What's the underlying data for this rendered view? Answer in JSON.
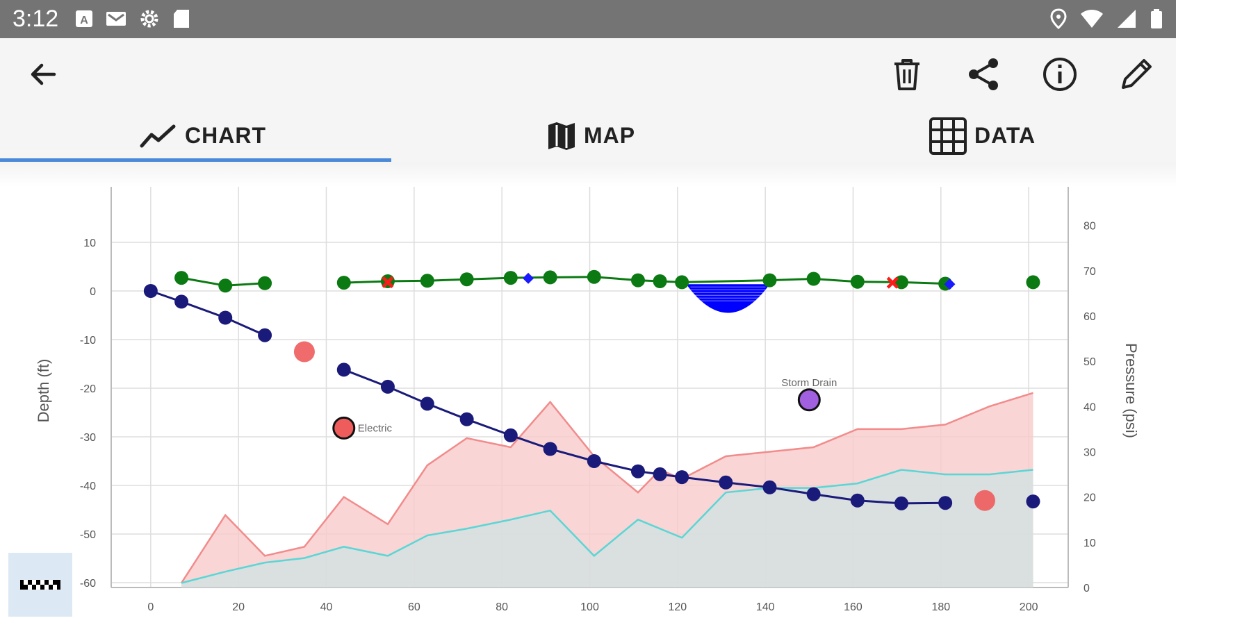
{
  "status_bar": {
    "time": "3:12"
  },
  "app_bar": {
    "back_icon": "arrow-back-icon",
    "actions": [
      "delete-icon",
      "share-icon",
      "info-icon",
      "edit-icon"
    ]
  },
  "tabs": [
    {
      "label": "CHART",
      "icon": "chart-line-icon",
      "selected": true
    },
    {
      "label": "MAP",
      "icon": "map-icon",
      "selected": false
    },
    {
      "label": "DATA",
      "icon": "grid-icon",
      "selected": false
    }
  ],
  "colors": {
    "accent": "#4a88d8",
    "depth_line": "#1a1a7a",
    "ground_line": "#0b7a12",
    "pressure_a": "#f28b8b",
    "pressure_a_fill": "#f8caca",
    "pressure_b": "#5ad6d6",
    "pressure_b_fill": "#d2e1e1",
    "utility_marker": "#ee5c5c",
    "storm_drain": "#a060e0",
    "water_fill": "#0000ff"
  },
  "chart_data": {
    "type": "line",
    "xlabel": "",
    "ylabel": "Depth (ft)",
    "y2label": "Pressure (psi)",
    "xlim": [
      -9,
      209
    ],
    "ylim": [
      -61,
      20
    ],
    "y2lim": [
      0,
      87
    ],
    "x_ticks": [
      0,
      20,
      40,
      60,
      80,
      100,
      120,
      140,
      160,
      180,
      200
    ],
    "y_ticks": [
      10,
      0,
      -10,
      -20,
      -30,
      -40,
      -50,
      -60
    ],
    "y2_ticks": [
      80,
      70,
      60,
      50,
      40,
      30,
      20,
      10,
      0
    ],
    "grid": true,
    "series": [
      {
        "kind": "depth",
        "points": [
          [
            0,
            0
          ],
          [
            7,
            -2.2
          ],
          [
            17,
            -5.5
          ],
          [
            26,
            -9.1
          ]
        ]
      },
      {
        "kind": "depth",
        "points": [
          [
            44,
            -16.2
          ],
          [
            54,
            -19.7
          ],
          [
            63,
            -23.2
          ],
          [
            72,
            -26.4
          ],
          [
            82,
            -29.7
          ],
          [
            91,
            -32.5
          ],
          [
            101,
            -35
          ],
          [
            111,
            -37.1
          ],
          [
            116,
            -37.7
          ],
          [
            121,
            -38.3
          ],
          [
            131,
            -39.4
          ],
          [
            141,
            -40.4
          ],
          [
            151,
            -41.8
          ],
          [
            161,
            -43.1
          ],
          [
            171,
            -43.7
          ],
          [
            181,
            -43.6
          ]
        ]
      },
      {
        "kind": "depth-single",
        "points": [
          [
            201,
            -43.3
          ]
        ]
      },
      {
        "kind": "ground",
        "points": [
          [
            7,
            2.7
          ],
          [
            17,
            1.1
          ],
          [
            26,
            1.6
          ]
        ]
      },
      {
        "kind": "ground",
        "points": [
          [
            44,
            1.7
          ],
          [
            54,
            2
          ],
          [
            63,
            2.1
          ],
          [
            72,
            2.4
          ],
          [
            82,
            2.7
          ],
          [
            91,
            2.8
          ],
          [
            101,
            2.9
          ],
          [
            111,
            2.2
          ],
          [
            116,
            2
          ],
          [
            121,
            1.8
          ],
          [
            141,
            2.2
          ],
          [
            151,
            2.5
          ],
          [
            161,
            1.9
          ],
          [
            171,
            1.8
          ],
          [
            181,
            1.5
          ]
        ]
      },
      {
        "kind": "ground-single",
        "points": [
          [
            201,
            1.8
          ]
        ]
      },
      {
        "kind": "pressure-a",
        "points": [
          [
            7,
            1
          ],
          [
            17,
            16
          ],
          [
            26,
            7
          ],
          [
            35,
            9
          ],
          [
            44,
            20
          ],
          [
            54,
            14
          ],
          [
            63,
            27
          ],
          [
            72,
            33
          ],
          [
            82,
            31
          ],
          [
            91,
            41
          ],
          [
            101,
            29
          ],
          [
            111,
            21
          ],
          [
            116,
            26
          ],
          [
            121,
            24
          ],
          [
            131,
            29
          ],
          [
            141,
            30
          ],
          [
            151,
            31
          ],
          [
            161,
            35
          ],
          [
            171,
            35
          ],
          [
            181,
            36
          ],
          [
            191,
            40
          ],
          [
            201,
            43
          ]
        ]
      },
      {
        "kind": "pressure-b",
        "points": [
          [
            7,
            1
          ],
          [
            17,
            3.5
          ],
          [
            26,
            5.5
          ],
          [
            35,
            6.5
          ],
          [
            44,
            9
          ],
          [
            54,
            7
          ],
          [
            63,
            11.5
          ],
          [
            72,
            13
          ],
          [
            82,
            15
          ],
          [
            91,
            17
          ],
          [
            101,
            7
          ],
          [
            111,
            15
          ],
          [
            121,
            11
          ],
          [
            131,
            21
          ],
          [
            141,
            22
          ],
          [
            151,
            22
          ],
          [
            161,
            23
          ],
          [
            171,
            26
          ],
          [
            181,
            25
          ],
          [
            191,
            25
          ],
          [
            201,
            26
          ]
        ]
      }
    ],
    "markers": {
      "red_x": [
        [
          54,
          1.8
        ],
        [
          169,
          1.7
        ]
      ],
      "blue_diamond": [
        [
          86,
          2.6
        ],
        [
          182,
          1.4
        ]
      ],
      "utility": [
        [
          35,
          -12.5
        ],
        [
          190,
          -43.1
        ]
      ],
      "labeled": [
        {
          "x": 44,
          "y": -28.2,
          "label": "Electric",
          "color_key": "utility_marker"
        },
        {
          "x": 150,
          "y": -22.4,
          "label": "Storm Drain",
          "color_key": "storm_drain"
        }
      ],
      "water": {
        "x_start": 122,
        "x_end": 141,
        "y_top": 1.4,
        "y_bottom": -4.5
      }
    }
  }
}
